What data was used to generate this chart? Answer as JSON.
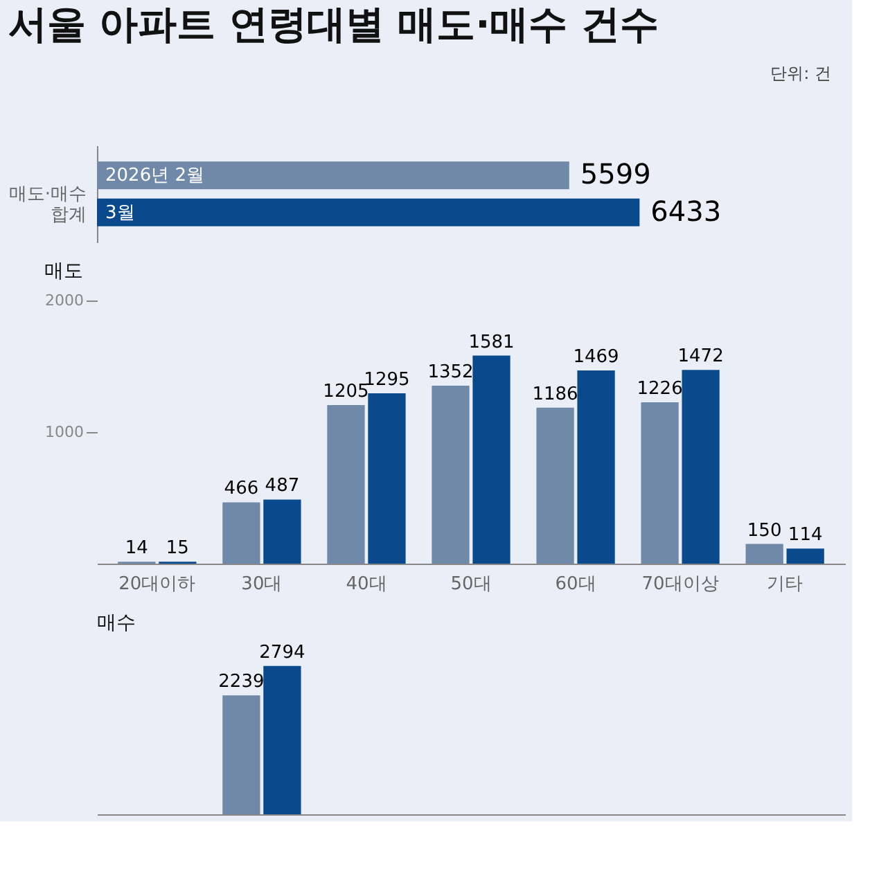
{
  "chart_data": [
    {
      "type": "bar",
      "orientation": "horizontal",
      "title": "서울 아파트 연령대별 매도·매수 건수",
      "annotations": [
        "단위: 건"
      ],
      "categories": [
        "매도·매수 합계"
      ],
      "tick_labels": "y",
      "data_labels": true,
      "series": [
        {
          "name": "2026년 2월",
          "color": "#7089a9",
          "values": [
            5599
          ]
        },
        {
          "name": "3월",
          "color": "#0a4a8c",
          "values": [
            6433
          ]
        }
      ]
    },
    {
      "type": "bar",
      "title": "매도",
      "categories": [
        "20대이하",
        "30대",
        "40대",
        "50대",
        "60대",
        "70대이상",
        "기타"
      ],
      "ylim": [
        0,
        2000
      ],
      "yticks": [
        1000,
        2000
      ],
      "grid": false,
      "data_labels": true,
      "series": [
        {
          "color": "#7089a9",
          "values": [
            14,
            466,
            1205,
            1352,
            1186,
            1226,
            150
          ]
        },
        {
          "color": "#0a4a8c",
          "values": [
            15,
            487,
            1295,
            1581,
            1469,
            1472,
            114
          ]
        }
      ]
    },
    {
      "type": "bar",
      "title": "매수",
      "categories": [
        null,
        null,
        null,
        null,
        null,
        null,
        null
      ],
      "tick_labels": false,
      "data_labels": true,
      "series": [
        {
          "color": "#7089a9",
          "values": [
            null,
            2239,
            null,
            null,
            null,
            null,
            null
          ]
        },
        {
          "color": "#0a4a8c",
          "values": [
            null,
            2794,
            null,
            null,
            null,
            null,
            null
          ]
        }
      ]
    }
  ]
}
